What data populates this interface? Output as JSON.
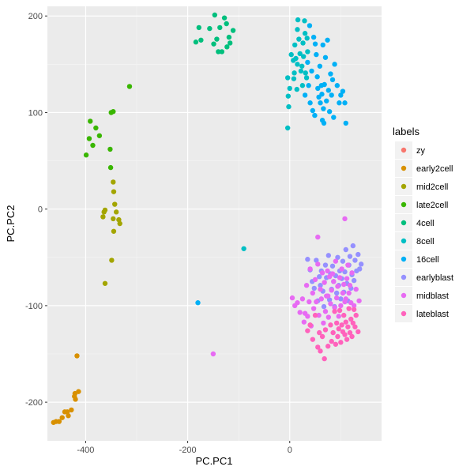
{
  "chart_data": {
    "type": "scatter",
    "xlabel": "PC.PC1",
    "ylabel": "PC.PC2",
    "xlim": [
      -475,
      180
    ],
    "ylim": [
      -240,
      210
    ],
    "x_ticks": [
      -400,
      -200,
      0
    ],
    "x_tick_labels": [
      "-400",
      "-200",
      "0"
    ],
    "y_ticks": [
      -200,
      -100,
      0,
      100,
      200
    ],
    "y_tick_labels": [
      "-200",
      "-100",
      "0",
      "100",
      "200"
    ],
    "grid": true,
    "background": "#EBEBEB",
    "legend": {
      "title": "labels",
      "placement": "right",
      "entries": [
        "zy",
        "early2cell",
        "mid2cell",
        "late2cell",
        "4cell",
        "8cell",
        "16cell",
        "earlyblast",
        "midblast",
        "lateblast"
      ]
    },
    "series": [
      {
        "name": "zy",
        "color": "#F8766D",
        "points": []
      },
      {
        "name": "early2cell",
        "color": "#D89000",
        "points": [
          [
            -463,
            -221
          ],
          [
            -458,
            -220
          ],
          [
            -452,
            -220
          ],
          [
            -446,
            -216
          ],
          [
            -441,
            -210
          ],
          [
            -436,
            -210
          ],
          [
            -434,
            -214
          ],
          [
            -428,
            -208
          ],
          [
            -421,
            -191
          ],
          [
            -422,
            -194
          ],
          [
            -420,
            -197
          ],
          [
            -414,
            -189
          ],
          [
            -417,
            -152
          ]
        ]
      },
      {
        "name": "mid2cell",
        "color": "#A3A500",
        "points": [
          [
            -362,
            -1
          ],
          [
            -364,
            -3
          ],
          [
            -366,
            -8
          ],
          [
            -362,
            -77
          ],
          [
            -349,
            -53
          ],
          [
            -345,
            -23
          ],
          [
            -346,
            -10
          ],
          [
            -343,
            5
          ],
          [
            -340,
            -3
          ],
          [
            -335,
            -11
          ],
          [
            -333,
            -15
          ],
          [
            -345,
            18
          ],
          [
            -346,
            28
          ]
        ]
      },
      {
        "name": "late2cell",
        "color": "#39B600",
        "points": [
          [
            -399,
            56
          ],
          [
            -393,
            73
          ],
          [
            -391,
            91
          ],
          [
            -386,
            66
          ],
          [
            -380,
            84
          ],
          [
            -373,
            76
          ],
          [
            -352,
            62
          ],
          [
            -351,
            43
          ],
          [
            -350,
            100
          ],
          [
            -346,
            101
          ],
          [
            -314,
            127
          ]
        ]
      },
      {
        "name": "4cell",
        "color": "#00BF7D",
        "points": [
          [
            -184,
            173
          ],
          [
            -178,
            188
          ],
          [
            -174,
            175
          ],
          [
            -157,
            187
          ],
          [
            -149,
            171
          ],
          [
            -147,
            201
          ],
          [
            -143,
            176
          ],
          [
            -140,
            163
          ],
          [
            -137,
            188
          ],
          [
            -133,
            163
          ],
          [
            -128,
            198
          ],
          [
            -124,
            192
          ],
          [
            -123,
            168
          ],
          [
            -119,
            178
          ],
          [
            -117,
            172
          ],
          [
            -111,
            185
          ]
        ]
      },
      {
        "name": "8cell",
        "color": "#00BFC4",
        "points": [
          [
            -90,
            -41
          ],
          [
            -4,
            136
          ],
          [
            -3,
            117
          ],
          [
            -2,
            106
          ],
          [
            -4,
            84
          ],
          [
            0,
            125
          ],
          [
            3,
            160
          ],
          [
            7,
            154
          ],
          [
            9,
            141
          ],
          [
            8,
            135
          ],
          [
            10,
            170
          ],
          [
            12,
            156
          ],
          [
            14,
            124
          ],
          [
            15,
            150
          ],
          [
            15,
            186
          ],
          [
            16,
            196
          ],
          [
            18,
            176
          ],
          [
            20,
            161
          ],
          [
            22,
            143
          ],
          [
            24,
            148
          ],
          [
            25,
            128
          ],
          [
            26,
            172
          ],
          [
            27,
            158
          ],
          [
            29,
            195
          ],
          [
            30,
            182
          ],
          [
            31,
            141
          ],
          [
            33,
            136
          ],
          [
            34,
            177
          ],
          [
            35,
            163
          ]
        ]
      },
      {
        "name": "16cell",
        "color": "#00B0F6",
        "points": [
          [
            -180,
            -97
          ],
          [
            30,
            118
          ],
          [
            35,
            152
          ],
          [
            37,
            128
          ],
          [
            39,
            190
          ],
          [
            40,
            110
          ],
          [
            43,
            143
          ],
          [
            45,
            102
          ],
          [
            47,
            178
          ],
          [
            49,
            97
          ],
          [
            50,
            171
          ],
          [
            52,
            160
          ],
          [
            54,
            137
          ],
          [
            55,
            125
          ],
          [
            57,
            116
          ],
          [
            59,
            148
          ],
          [
            60,
            110
          ],
          [
            62,
            128
          ],
          [
            63,
            119
          ],
          [
            64,
            92
          ],
          [
            65,
            170
          ],
          [
            66,
            104
          ],
          [
            67,
            89
          ],
          [
            68,
            129
          ],
          [
            70,
            157
          ],
          [
            72,
            112
          ],
          [
            74,
            175
          ],
          [
            76,
            123
          ],
          [
            78,
            101
          ],
          [
            80,
            140
          ],
          [
            82,
            118
          ],
          [
            84,
            134
          ],
          [
            86,
            95
          ],
          [
            88,
            150
          ],
          [
            93,
            128
          ],
          [
            97,
            110
          ],
          [
            100,
            118
          ],
          [
            104,
            122
          ],
          [
            108,
            110
          ],
          [
            110,
            89
          ]
        ]
      },
      {
        "name": "earlyblast",
        "color": "#9590FF",
        "points": [
          [
            35,
            -52
          ],
          [
            40,
            -63
          ],
          [
            44,
            -75
          ],
          [
            48,
            -82
          ],
          [
            52,
            -53
          ],
          [
            55,
            -95
          ],
          [
            58,
            -70
          ],
          [
            60,
            -79
          ],
          [
            62,
            -64
          ],
          [
            65,
            -85
          ],
          [
            67,
            -101
          ],
          [
            70,
            -58
          ],
          [
            72,
            -71
          ],
          [
            74,
            -90
          ],
          [
            76,
            -48
          ],
          [
            78,
            -94
          ],
          [
            80,
            -67
          ],
          [
            82,
            -83
          ],
          [
            84,
            -59
          ],
          [
            86,
            -75
          ],
          [
            88,
            -101
          ],
          [
            90,
            -69
          ],
          [
            92,
            -87
          ],
          [
            94,
            -50
          ],
          [
            96,
            -79
          ],
          [
            98,
            -64
          ],
          [
            100,
            -93
          ],
          [
            102,
            -72
          ],
          [
            104,
            -54
          ],
          [
            106,
            -86
          ],
          [
            108,
            -65
          ],
          [
            110,
            -42
          ],
          [
            112,
            -77
          ],
          [
            114,
            -95
          ],
          [
            116,
            -58
          ],
          [
            118,
            -49
          ],
          [
            120,
            -82
          ],
          [
            122,
            -68
          ],
          [
            124,
            -38
          ],
          [
            126,
            -74
          ],
          [
            128,
            -53
          ],
          [
            131,
            -64
          ],
          [
            134,
            -47
          ],
          [
            137,
            -62
          ],
          [
            140,
            -57
          ]
        ]
      },
      {
        "name": "midblast",
        "color": "#E76BF3",
        "points": [
          [
            -150,
            -150
          ],
          [
            5,
            -92
          ],
          [
            10,
            -100
          ],
          [
            15,
            -97
          ],
          [
            20,
            -107
          ],
          [
            25,
            -93
          ],
          [
            28,
            -117
          ],
          [
            30,
            -108
          ],
          [
            33,
            -79
          ],
          [
            35,
            -111
          ],
          [
            38,
            -96
          ],
          [
            40,
            -62
          ],
          [
            42,
            -121
          ],
          [
            45,
            -87
          ],
          [
            47,
            -103
          ],
          [
            50,
            -73
          ],
          [
            52,
            -96
          ],
          [
            55,
            -57
          ],
          [
            57,
            -110
          ],
          [
            60,
            -83
          ],
          [
            62,
            -93
          ],
          [
            64,
            -66
          ],
          [
            66,
            -118
          ],
          [
            68,
            -76
          ],
          [
            70,
            -106
          ],
          [
            72,
            -90
          ],
          [
            74,
            -64
          ],
          [
            76,
            -112
          ],
          [
            78,
            -70
          ],
          [
            80,
            -98
          ],
          [
            82,
            -84
          ],
          [
            84,
            -67
          ],
          [
            86,
            -75
          ],
          [
            88,
            -102
          ],
          [
            90,
            -54
          ],
          [
            92,
            -92
          ],
          [
            94,
            -80
          ],
          [
            96,
            -111
          ],
          [
            98,
            -71
          ],
          [
            100,
            -100
          ],
          [
            102,
            -62
          ],
          [
            104,
            -87
          ],
          [
            106,
            -78
          ],
          [
            108,
            -96
          ],
          [
            110,
            -93
          ],
          [
            112,
            -72
          ],
          [
            114,
            -58
          ],
          [
            116,
            -87
          ],
          [
            118,
            -79
          ],
          [
            120,
            -97
          ],
          [
            122,
            -66
          ],
          [
            126,
            -100
          ],
          [
            130,
            -83
          ],
          [
            136,
            -95
          ],
          [
            55,
            -29
          ],
          [
            108,
            -10
          ],
          [
            75,
            -90
          ]
        ]
      },
      {
        "name": "lateblast",
        "color": "#FF62BC",
        "points": [
          [
            35,
            -126
          ],
          [
            40,
            -120
          ],
          [
            45,
            -135
          ],
          [
            50,
            -110
          ],
          [
            55,
            -143
          ],
          [
            58,
            -128
          ],
          [
            60,
            -147
          ],
          [
            64,
            -132
          ],
          [
            68,
            -155
          ],
          [
            70,
            -125
          ],
          [
            75,
            -142
          ],
          [
            80,
            -120
          ],
          [
            82,
            -137
          ],
          [
            85,
            -128
          ],
          [
            88,
            -106
          ],
          [
            90,
            -140
          ],
          [
            92,
            -118
          ],
          [
            94,
            -132
          ],
          [
            96,
            -124
          ],
          [
            98,
            -105
          ],
          [
            100,
            -138
          ],
          [
            102,
            -120
          ],
          [
            104,
            -127
          ],
          [
            106,
            -110
          ],
          [
            108,
            -130
          ],
          [
            110,
            -117
          ],
          [
            112,
            -135
          ],
          [
            114,
            -122
          ],
          [
            116,
            -103
          ],
          [
            118,
            -128
          ],
          [
            120,
            -114
          ],
          [
            122,
            -132
          ],
          [
            124,
            -118
          ],
          [
            126,
            -104
          ],
          [
            128,
            -122
          ],
          [
            130,
            -110
          ],
          [
            134,
            -127
          ]
        ]
      }
    ]
  }
}
